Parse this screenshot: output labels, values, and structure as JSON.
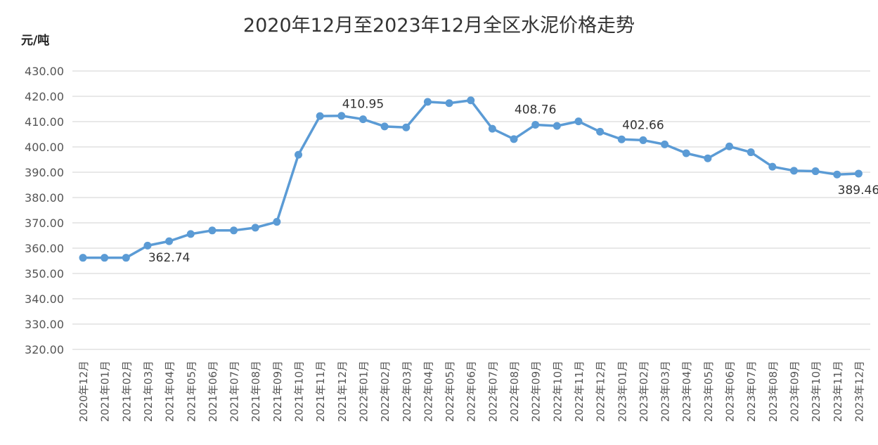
{
  "chart_data": {
    "type": "line",
    "title": "2020年12月至2023年12月全区水泥价格走势",
    "ylabel": "元/吨",
    "xlabel": "",
    "ylim": [
      320,
      430
    ],
    "ytick_step": 10,
    "yticks": [
      "320.00",
      "330.00",
      "340.00",
      "350.00",
      "360.00",
      "370.00",
      "380.00",
      "390.00",
      "400.00",
      "410.00",
      "420.00",
      "430.00"
    ],
    "grid": true,
    "categories": [
      "2020年12月",
      "2021年01月",
      "2021年02月",
      "2021年03月",
      "2021年04月",
      "2021年05月",
      "2021年06月",
      "2021年07月",
      "2021年08月",
      "2021年09月",
      "2021年10月",
      "2021年11月",
      "2021年12月",
      "2022年01月",
      "2022年02月",
      "2022年03月",
      "2022年04月",
      "2022年05月",
      "2022年06月",
      "2022年07月",
      "2022年08月",
      "2022年09月",
      "2022年10月",
      "2022年11月",
      "2022年12月",
      "2023年01月",
      "2023年02月",
      "2023年03月",
      "2023年04月",
      "2023年05月",
      "2023年06月",
      "2023年07月",
      "2023年08月",
      "2023年09月",
      "2023年10月",
      "2023年11月",
      "2023年12月"
    ],
    "series": [
      {
        "name": "",
        "color": "#5B9BD5",
        "values": [
          356.2,
          356.2,
          356.2,
          361.0,
          362.74,
          365.6,
          367.0,
          367.0,
          368.1,
          370.4,
          396.9,
          412.2,
          412.3,
          410.95,
          408.1,
          407.7,
          417.8,
          417.3,
          418.4,
          407.2,
          403.1,
          408.76,
          408.3,
          410.1,
          406.0,
          403.0,
          402.66,
          401.0,
          397.5,
          395.5,
          400.2,
          397.9,
          392.2,
          390.6,
          390.4,
          389.1,
          389.46
        ]
      }
    ],
    "data_labels": [
      {
        "index": 4,
        "text": "362.74",
        "position": "below"
      },
      {
        "index": 13,
        "text": "410.95",
        "position": "above"
      },
      {
        "index": 21,
        "text": "408.76",
        "position": "above"
      },
      {
        "index": 26,
        "text": "402.66",
        "position": "above"
      },
      {
        "index": 36,
        "text": "389.46",
        "position": "below"
      }
    ]
  }
}
